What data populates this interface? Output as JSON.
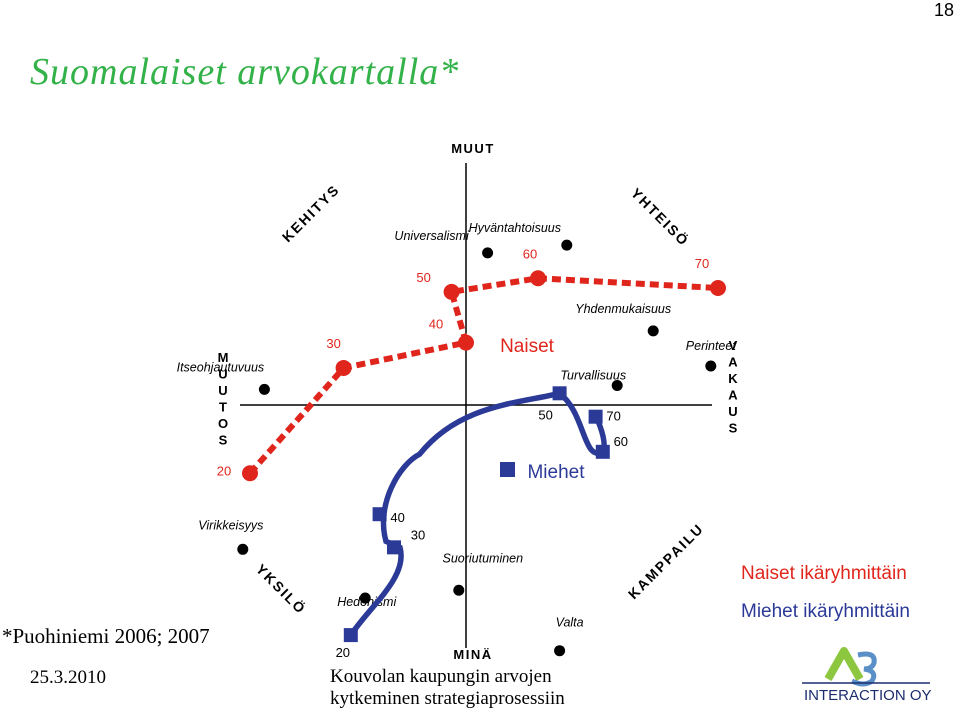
{
  "page_number": "18",
  "title": "Suomalaiset arvokartalla*",
  "axes": {
    "top": "MUUT",
    "bottom": "MINÄ",
    "left": [
      "M",
      "U",
      "U",
      "T",
      "O",
      "S"
    ],
    "right": [
      "V",
      "A",
      "K",
      "A",
      "U",
      "S"
    ]
  },
  "diagonals": {
    "kehitys": "KEHITYS",
    "yhteiso": "YHTEISÖ",
    "yksilo": "YKSILÖ",
    "kamppailu": "KAMPPAILU"
  },
  "values": [
    {
      "label": "Universalismi",
      "x": 0.3,
      "y": 0.78
    },
    {
      "label": "Hyväntahtoisuus",
      "x": 1.4,
      "y": 0.82
    },
    {
      "label": "Yhdenmukaisuus",
      "x": 2.6,
      "y": 0.38
    },
    {
      "label": "Perinteet",
      "x": 3.4,
      "y": 0.2
    },
    {
      "label": "Turvallisuus",
      "x": 2.1,
      "y": 0.1
    },
    {
      "label": "Itseohjautuvuus",
      "x": -2.8,
      "y": 0.08
    },
    {
      "label": "Virikkeisyys",
      "x": -3.1,
      "y": -0.74
    },
    {
      "label": "Hedonismi",
      "x": -1.4,
      "y": -0.99
    },
    {
      "label": "Suoriutuminen",
      "x": -0.1,
      "y": -0.95
    },
    {
      "label": "Valta",
      "x": 1.3,
      "y": -1.26
    }
  ],
  "series": [
    {
      "name": "Naiset",
      "color": "#e0261c",
      "points": [
        {
          "age": "20",
          "x": -3.0,
          "y": -0.35
        },
        {
          "age": "30",
          "x": -1.7,
          "y": 0.19
        },
        {
          "age": "40",
          "x": 0.0,
          "y": 0.32
        },
        {
          "age": "50",
          "x": -0.2,
          "y": 0.58
        },
        {
          "age": "60",
          "x": 1.0,
          "y": 0.65
        },
        {
          "age": "70",
          "x": 3.5,
          "y": 0.6
        }
      ]
    },
    {
      "name": "Miehet",
      "color": "#2b3a97",
      "points": [
        {
          "age": "20",
          "x": -1.6,
          "y": -1.18
        },
        {
          "age": "30",
          "x": -1.0,
          "y": -0.73
        },
        {
          "age": "40",
          "x": -1.2,
          "y": -0.56
        },
        {
          "age": "50",
          "x": 1.3,
          "y": 0.06
        },
        {
          "age": "60",
          "x": 1.9,
          "y": -0.24
        },
        {
          "age": "70",
          "x": 1.8,
          "y": -0.06
        }
      ]
    }
  ],
  "legend": {
    "naiset": "Naiset ikäryhmittäin",
    "miehet": "Miehet ikäryhmittäin"
  },
  "source_note": "*Puohiniemi 2006; 2007",
  "date": "25.3.2010",
  "footer": {
    "line1": "Kouvolan kaupungin arvojen",
    "line2": "kytkeminen strategiaprosessiin"
  },
  "logo_text": "INTERACTION OY"
}
